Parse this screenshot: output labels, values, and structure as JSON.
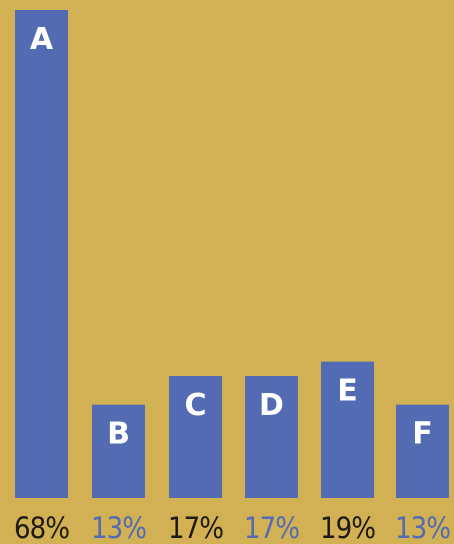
{
  "chart_data": {
    "type": "bar",
    "categories": [
      "A",
      "B",
      "C",
      "D",
      "E",
      "F"
    ],
    "values": [
      68,
      13,
      17,
      17,
      19,
      13
    ],
    "value_labels": [
      "68%",
      "13%",
      "17%",
      "17%",
      "19%",
      "13%"
    ],
    "unit": "%",
    "title": "",
    "xlabel": "",
    "ylabel": "",
    "ylim": [
      0,
      68
    ],
    "grid": false,
    "legend": "none"
  },
  "colors": {
    "background": "#D1B153",
    "bar": "#536BB2",
    "bar_letter": "#FFFFFF",
    "label_dark": "#1F1A12",
    "label_blue": "#536BB2"
  }
}
